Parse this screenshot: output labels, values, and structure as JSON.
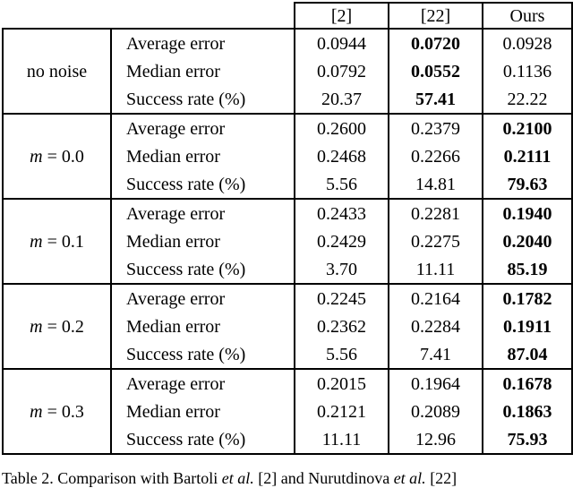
{
  "table": {
    "col_headers": [
      "[2]",
      "[22]",
      "Ours"
    ],
    "metrics": [
      "Average error",
      "Median error",
      "Success rate (%)"
    ],
    "groups": [
      {
        "label_var": "",
        "label_rest": "no noise",
        "bold_col": 1,
        "rows": [
          [
            "0.0944",
            "0.0720",
            "0.0928"
          ],
          [
            "0.0792",
            "0.0552",
            "0.1136"
          ],
          [
            "20.37",
            "57.41",
            "22.22"
          ]
        ]
      },
      {
        "label_var": "m",
        "label_rest": " = 0.0",
        "bold_col": 2,
        "rows": [
          [
            "0.2600",
            "0.2379",
            "0.2100"
          ],
          [
            "0.2468",
            "0.2266",
            "0.2111"
          ],
          [
            "5.56",
            "14.81",
            "79.63"
          ]
        ]
      },
      {
        "label_var": "m",
        "label_rest": " = 0.1",
        "bold_col": 2,
        "rows": [
          [
            "0.2433",
            "0.2281",
            "0.1940"
          ],
          [
            "0.2429",
            "0.2275",
            "0.2040"
          ],
          [
            "3.70",
            "11.11",
            "85.19"
          ]
        ]
      },
      {
        "label_var": "m",
        "label_rest": " = 0.2",
        "bold_col": 2,
        "rows": [
          [
            "0.2245",
            "0.2164",
            "0.1782"
          ],
          [
            "0.2362",
            "0.2284",
            "0.1911"
          ],
          [
            "5.56",
            "7.41",
            "87.04"
          ]
        ]
      },
      {
        "label_var": "m",
        "label_rest": " = 0.3",
        "bold_col": 2,
        "rows": [
          [
            "0.2015",
            "0.1964",
            "0.1678"
          ],
          [
            "0.2121",
            "0.2089",
            "0.1863"
          ],
          [
            "11.11",
            "12.96",
            "75.93"
          ]
        ]
      }
    ]
  },
  "caption": {
    "part1": "Table 2. Comparison with Bartoli ",
    "etal": "et al.",
    "part2": " [2] and Nurutdinova ",
    "part3": " [22]"
  }
}
